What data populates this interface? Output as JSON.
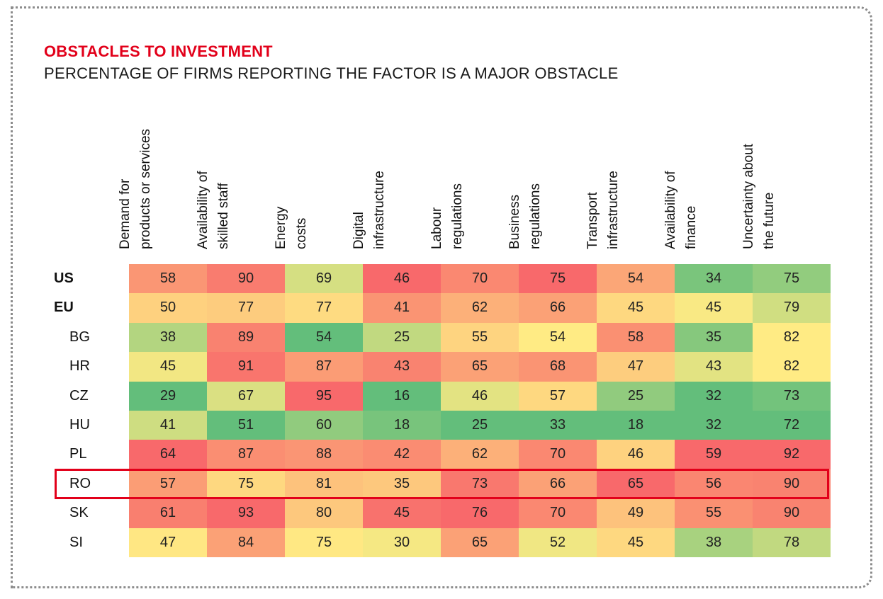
{
  "chart_data": {
    "type": "heatmap",
    "title": "OBSTACLES TO INVESTMENT",
    "subtitle": "PERCENTAGE OF FIRMS REPORTING THE FACTOR IS A MAJOR OBSTACLE",
    "columns": [
      [
        "Demand for",
        "products or services"
      ],
      [
        "Availability of",
        "skilled staff"
      ],
      [
        "Energy",
        "costs"
      ],
      [
        "Digital",
        "infrastructure"
      ],
      [
        "Labour",
        "regulations"
      ],
      [
        "Business",
        "regulations"
      ],
      [
        "Transport",
        "infrastructure"
      ],
      [
        "Availability of",
        "finance"
      ],
      [
        "Uncertainty about",
        "the future"
      ]
    ],
    "rows": [
      {
        "label": "US",
        "bold": true,
        "values": [
          58,
          90,
          69,
          46,
          70,
          75,
          54,
          34,
          75
        ]
      },
      {
        "label": "EU",
        "bold": true,
        "values": [
          50,
          77,
          77,
          41,
          62,
          66,
          45,
          45,
          79
        ]
      },
      {
        "label": "BG",
        "bold": false,
        "values": [
          38,
          89,
          54,
          25,
          55,
          54,
          58,
          35,
          82
        ]
      },
      {
        "label": "HR",
        "bold": false,
        "values": [
          45,
          91,
          87,
          43,
          65,
          68,
          47,
          43,
          82
        ]
      },
      {
        "label": "CZ",
        "bold": false,
        "values": [
          29,
          67,
          95,
          16,
          46,
          57,
          25,
          32,
          73
        ]
      },
      {
        "label": "HU",
        "bold": false,
        "values": [
          41,
          51,
          60,
          18,
          25,
          33,
          18,
          32,
          72
        ]
      },
      {
        "label": "PL",
        "bold": false,
        "values": [
          64,
          87,
          88,
          42,
          62,
          70,
          46,
          59,
          92
        ]
      },
      {
        "label": "RO",
        "bold": false,
        "values": [
          57,
          75,
          81,
          35,
          73,
          66,
          65,
          56,
          90
        ],
        "highlighted": true
      },
      {
        "label": "SK",
        "bold": false,
        "values": [
          61,
          93,
          80,
          45,
          76,
          70,
          49,
          55,
          90
        ]
      },
      {
        "label": "SI",
        "bold": false,
        "values": [
          47,
          84,
          75,
          30,
          65,
          52,
          45,
          38,
          78
        ]
      }
    ],
    "colors": {
      "title": "#e2001a",
      "highlight_border": "#e2001a",
      "scale_low": "#63be7b",
      "scale_mid": "#ffeb84",
      "scale_high": "#f8696b"
    }
  }
}
